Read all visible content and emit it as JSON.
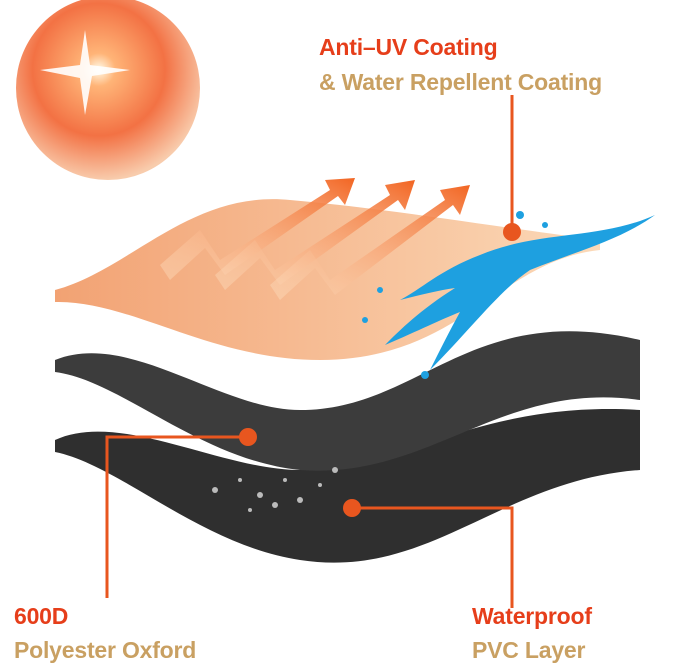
{
  "colors": {
    "accent_red": "#e63e1a",
    "accent_tan": "#c9a062",
    "coating_layer": "#f5b98a",
    "fabric_layer": "#3a3a3a",
    "water": "#1ea0e0"
  },
  "labels": {
    "coating": {
      "title": "Anti–UV Coating",
      "subtitle": "& Water Repellent Coating"
    },
    "fabric": {
      "title": "600D",
      "subtitle": "Polyester Oxford"
    },
    "pvc": {
      "title": "Waterproof",
      "subtitle": "PVC Layer"
    }
  },
  "icons": [
    "sun-icon",
    "uv-arrow-icon",
    "water-splash-icon",
    "water-droplets-icon"
  ]
}
